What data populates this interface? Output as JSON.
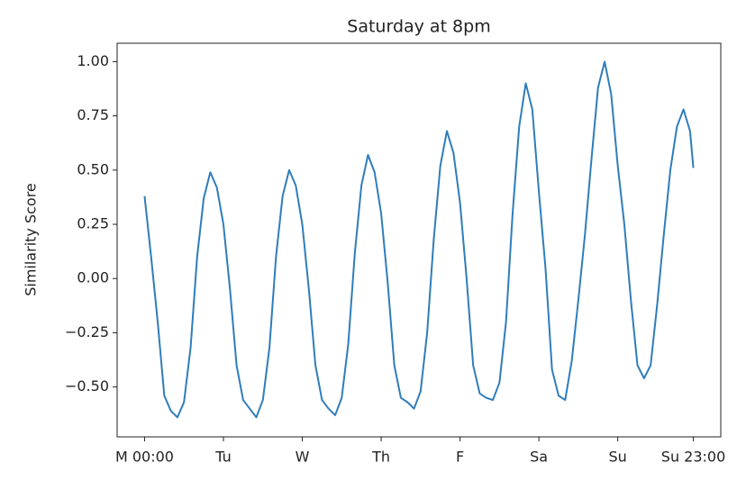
{
  "chart_data": {
    "type": "line",
    "title": "Saturday at 8pm",
    "y_label": "Similarity Score",
    "x": [
      0,
      2,
      4,
      6,
      8,
      10,
      12,
      14,
      16,
      18,
      20,
      22,
      24,
      26,
      28,
      30,
      32,
      34,
      36,
      38,
      40,
      42,
      44,
      46,
      48,
      50,
      52,
      54,
      56,
      58,
      60,
      62,
      64,
      66,
      68,
      70,
      72,
      74,
      76,
      78,
      80,
      82,
      84,
      86,
      88,
      90,
      92,
      94,
      96,
      98,
      100,
      102,
      104,
      106,
      108,
      110,
      112,
      114,
      116,
      118,
      120,
      122,
      124,
      126,
      128,
      130,
      132,
      134,
      136,
      138,
      140,
      142,
      144,
      146,
      148,
      150,
      152,
      154,
      156,
      158,
      160,
      162,
      164,
      166,
      167
    ],
    "series": [
      {
        "name": "Similarity Score",
        "color": "#2f7dbb",
        "values": [
          0.38,
          0.1,
          -0.2,
          -0.54,
          -0.61,
          -0.64,
          -0.57,
          -0.32,
          0.1,
          0.37,
          0.49,
          0.42,
          0.25,
          -0.05,
          -0.4,
          -0.56,
          -0.6,
          -0.64,
          -0.56,
          -0.32,
          0.1,
          0.38,
          0.5,
          0.43,
          0.25,
          -0.05,
          -0.4,
          -0.56,
          -0.6,
          -0.63,
          -0.55,
          -0.3,
          0.12,
          0.43,
          0.57,
          0.49,
          0.3,
          -0.02,
          -0.4,
          -0.55,
          -0.57,
          -0.6,
          -0.52,
          -0.25,
          0.18,
          0.52,
          0.68,
          0.58,
          0.35,
          0.0,
          -0.4,
          -0.53,
          -0.55,
          -0.56,
          -0.48,
          -0.2,
          0.3,
          0.7,
          0.9,
          0.78,
          0.4,
          0.05,
          -0.42,
          -0.54,
          -0.56,
          -0.38,
          -0.1,
          0.2,
          0.55,
          0.88,
          1.0,
          0.85,
          0.52,
          0.25,
          -0.1,
          -0.4,
          -0.46,
          -0.4,
          -0.12,
          0.2,
          0.5,
          0.7,
          0.78,
          0.68,
          0.51
        ]
      }
    ],
    "xlim": [
      -8.35,
      175.35
    ],
    "xticks": [
      {
        "value": 0,
        "label": "M 00:00"
      },
      {
        "value": 24,
        "label": "Tu"
      },
      {
        "value": 48,
        "label": "W"
      },
      {
        "value": 72,
        "label": "Th"
      },
      {
        "value": 96,
        "label": "F"
      },
      {
        "value": 120,
        "label": "Sa"
      },
      {
        "value": 144,
        "label": "Su"
      },
      {
        "value": 167,
        "label": "Su 23:00"
      }
    ],
    "ylim": [
      -0.73,
      1.085
    ],
    "yticks": [
      {
        "value": -0.5,
        "label": "−0.50"
      },
      {
        "value": -0.25,
        "label": "−0.25"
      },
      {
        "value": 0,
        "label": "0.00"
      },
      {
        "value": 0.25,
        "label": "0.25"
      },
      {
        "value": 0.5,
        "label": "0.50"
      },
      {
        "value": 0.75,
        "label": "0.75"
      },
      {
        "value": 1,
        "label": "1.00"
      }
    ],
    "grid": false
  }
}
